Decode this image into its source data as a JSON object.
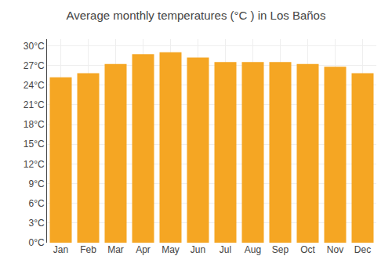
{
  "chart_data": {
    "type": "bar",
    "title": "Average monthly temperatures (°C ) in Los Baños",
    "categories": [
      "Jan",
      "Feb",
      "Mar",
      "Apr",
      "May",
      "Jun",
      "Jul",
      "Aug",
      "Sep",
      "Oct",
      "Nov",
      "Dec"
    ],
    "values": [
      25.2,
      25.8,
      27.2,
      28.7,
      29.0,
      28.2,
      27.5,
      27.5,
      27.5,
      27.2,
      26.8,
      25.8
    ],
    "color": "#F5A623",
    "ylim": [
      0,
      31
    ],
    "yticks": [
      {
        "value": 0,
        "label": "0°C"
      },
      {
        "value": 3,
        "label": "3°C"
      },
      {
        "value": 6,
        "label": "6°C"
      },
      {
        "value": 9,
        "label": "9°C"
      },
      {
        "value": 12,
        "label": "12°C"
      },
      {
        "value": 15,
        "label": "15°C"
      },
      {
        "value": 18,
        "label": "18°C"
      },
      {
        "value": 21,
        "label": "21°C"
      },
      {
        "value": 24,
        "label": "24°C"
      },
      {
        "value": 27,
        "label": "27°C"
      },
      {
        "value": 30,
        "label": "30°C"
      }
    ],
    "grid": true
  }
}
